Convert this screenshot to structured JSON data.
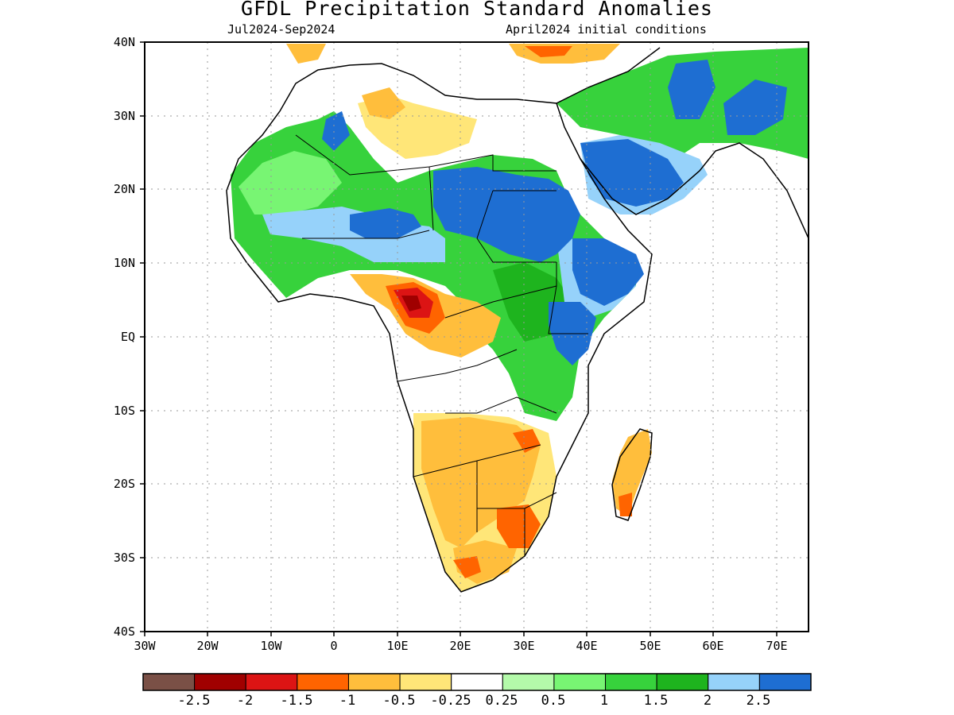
{
  "title": "GFDL Precipitation Standard Anomalies",
  "subtitle_left": "Jul2024-Sep2024",
  "subtitle_right": "April2024 initial conditions",
  "lat_labels": [
    "40N",
    "30N",
    "20N",
    "10N",
    "EQ",
    "10S",
    "20S",
    "30S",
    "40S"
  ],
  "lon_labels": [
    "30W",
    "20W",
    "10W",
    "0",
    "10E",
    "20E",
    "30E",
    "40E",
    "50E",
    "60E",
    "70E"
  ],
  "colorbar": {
    "colors": [
      "#7a5046",
      "#a00000",
      "#dc1414",
      "#ff6400",
      "#ffbe3c",
      "#ffe678",
      "#ffffff",
      "#b4faaa",
      "#78f573",
      "#37d23c",
      "#1eb41e",
      "#96d2fa",
      "#1e6ed2"
    ],
    "labels": [
      "-2.5",
      "-2",
      "-1.5",
      "-1",
      "-0.5",
      "-0.25",
      "0.25",
      "0.5",
      "1",
      "1.5",
      "2",
      "2.5"
    ]
  },
  "colors": {
    "wet_strong": "#1e6ed2",
    "wet_light": "#96d2fa",
    "green_dark": "#1eb41e",
    "green_mid": "#37d23c",
    "green_light": "#78f573",
    "dry_light": "#ffe678",
    "dry_mid": "#ffbe3c",
    "dry_orange": "#ff6400",
    "dry_red": "#dc1414",
    "dry_darkred": "#a00000"
  }
}
